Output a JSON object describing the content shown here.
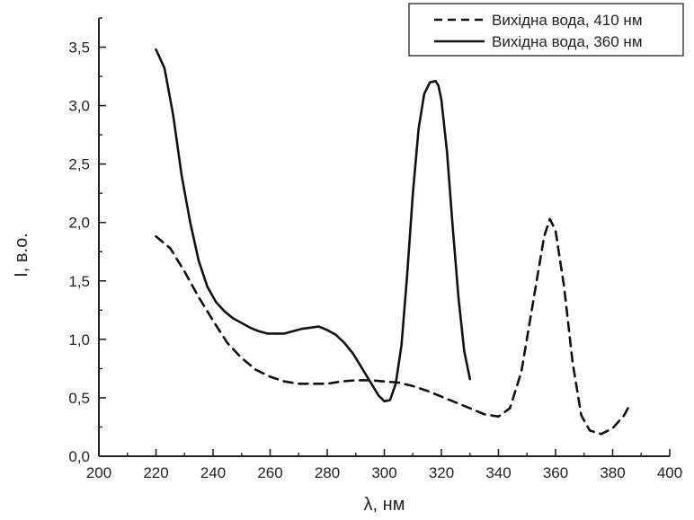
{
  "chart_data": {
    "type": "line",
    "xlabel": "λ, нм",
    "ylabel": "I, в.о.",
    "xlim": [
      200,
      400
    ],
    "ylim": [
      0,
      3.75
    ],
    "xticks": [
      "200",
      "220",
      "240",
      "260",
      "280",
      "300",
      "320",
      "340",
      "360",
      "380",
      "400"
    ],
    "yticks": [
      "0,0",
      "0,5",
      "1,0",
      "1,5",
      "2,0",
      "2,5",
      "3,0",
      "3,5"
    ],
    "grid": false,
    "legend_position": "top-right",
    "series": [
      {
        "name": "Вихідна вода, 410 нм",
        "style": "dashed",
        "color": "#111111",
        "x": [
          220,
          225,
          230,
          235,
          240,
          245,
          250,
          255,
          260,
          265,
          270,
          275,
          280,
          285,
          290,
          295,
          300,
          305,
          310,
          315,
          320,
          325,
          330,
          335,
          340,
          344,
          348,
          352,
          356,
          358,
          360,
          363,
          366,
          369,
          372,
          376,
          380,
          384,
          386
        ],
        "y": [
          1.88,
          1.78,
          1.58,
          1.36,
          1.16,
          0.97,
          0.84,
          0.74,
          0.68,
          0.64,
          0.62,
          0.62,
          0.62,
          0.64,
          0.65,
          0.65,
          0.64,
          0.63,
          0.6,
          0.56,
          0.51,
          0.46,
          0.41,
          0.36,
          0.34,
          0.41,
          0.72,
          1.3,
          1.88,
          2.03,
          1.93,
          1.45,
          0.8,
          0.35,
          0.22,
          0.19,
          0.24,
          0.35,
          0.44
        ]
      },
      {
        "name": "Вихідна вода, 360 нм",
        "style": "solid",
        "color": "#111111",
        "x": [
          220,
          223,
          226,
          229,
          232,
          235,
          238,
          241,
          244,
          247,
          250,
          253,
          256,
          259,
          262,
          265,
          268,
          271,
          274,
          277,
          280,
          283,
          286,
          289,
          292,
          295,
          298,
          300,
          302,
          304,
          306,
          308,
          310,
          312,
          314,
          316,
          318,
          319,
          320,
          322,
          324,
          326,
          328,
          330
        ],
        "y": [
          3.48,
          3.32,
          2.92,
          2.4,
          2.0,
          1.67,
          1.45,
          1.32,
          1.24,
          1.18,
          1.14,
          1.1,
          1.07,
          1.05,
          1.05,
          1.05,
          1.07,
          1.09,
          1.1,
          1.11,
          1.08,
          1.04,
          0.97,
          0.88,
          0.76,
          0.64,
          0.52,
          0.47,
          0.48,
          0.62,
          0.95,
          1.55,
          2.25,
          2.8,
          3.1,
          3.2,
          3.21,
          3.17,
          3.05,
          2.6,
          1.95,
          1.35,
          0.9,
          0.66
        ]
      }
    ]
  }
}
